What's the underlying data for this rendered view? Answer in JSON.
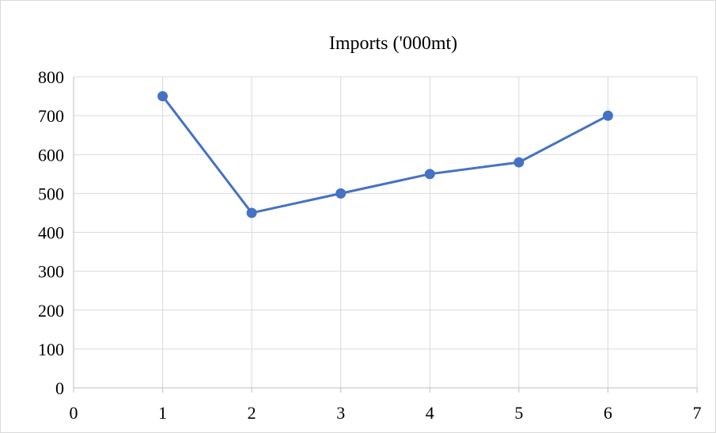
{
  "chart_data": {
    "type": "scatter",
    "title": "Imports ('000mt)",
    "xlabel": "",
    "ylabel": "",
    "xlim": [
      0,
      7
    ],
    "ylim": [
      0,
      800
    ],
    "x_ticks": [
      0,
      1,
      2,
      3,
      4,
      5,
      6,
      7
    ],
    "y_ticks": [
      0,
      100,
      200,
      300,
      400,
      500,
      600,
      700,
      800
    ],
    "grid": true,
    "legend": "none",
    "series": [
      {
        "points": [
          {
            "x": 1,
            "y": 750
          },
          {
            "x": 2,
            "y": 450
          },
          {
            "x": 3,
            "y": 500
          },
          {
            "x": 4,
            "y": 550
          },
          {
            "x": 5,
            "y": 580
          },
          {
            "x": 6,
            "y": 700
          }
        ],
        "color": "#4472c4",
        "line": "straight",
        "marker": "circle"
      }
    ]
  }
}
